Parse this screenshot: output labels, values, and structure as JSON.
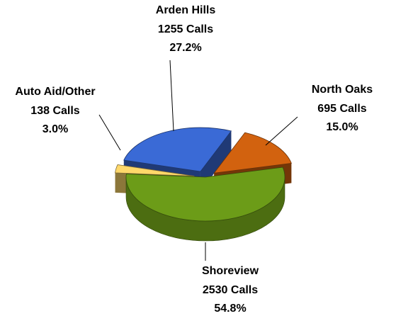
{
  "chart_data": {
    "type": "pie",
    "categories": [
      "Arden Hills",
      "North Oaks",
      "Shoreview",
      "Auto Aid/Other"
    ],
    "values": [
      1255,
      695,
      2530,
      138
    ],
    "value_labels": [
      "1255 Calls",
      "695 Calls",
      "2530 Calls",
      "138 Calls"
    ],
    "percent_labels": [
      "27.2%",
      "15.0%",
      "54.8%",
      "3.0%"
    ],
    "colors": [
      "#3a6ad6",
      "#d2620f",
      "#6c9c18",
      "#ffd86a"
    ]
  }
}
